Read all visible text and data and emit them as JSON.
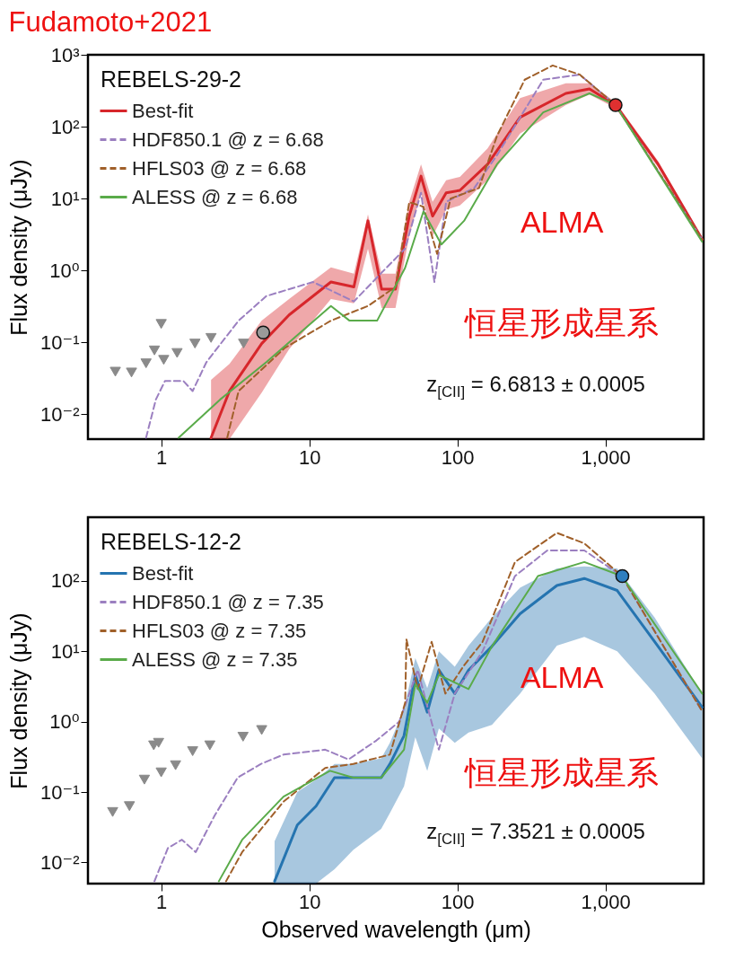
{
  "chart_data": [
    {
      "type": "line",
      "title": "Fudamoto+2021",
      "subtitle": "REBELS-29-2",
      "ylabel": "Flux density (μJy)",
      "log": "xy",
      "grid": false,
      "legend": "top left",
      "xlim": [
        0.32,
        4600
      ],
      "ylim": [
        0.0045,
        1000
      ],
      "xticks": [
        1,
        10,
        100,
        {
          "value": 1000,
          "label": "1,000"
        }
      ],
      "yticks": [
        {
          "value": 0.01,
          "label": "10⁻²"
        },
        {
          "value": 0.1,
          "label": "10⁻¹"
        },
        {
          "value": 1,
          "label": "10⁰"
        },
        {
          "value": 10,
          "label": "10¹"
        },
        {
          "value": 100,
          "label": "10²"
        },
        {
          "value": 1000,
          "label": "10³"
        }
      ],
      "annotations": [
        "ALMA",
        "恒星形成星系",
        "z$_{[CII]}$ = 6.6813 ± 0.0005"
      ],
      "series": [
        {
          "name": "Best-fit",
          "color": "#d7262b",
          "line_style": "solid",
          "x": [
            2.17,
            2.89,
            4.77,
            7.3,
            14,
            20,
            24.9,
            30.8,
            38.2,
            47.3,
            56.8,
            68,
            84,
            104,
            160,
            265,
            540,
            780,
            1170,
            2270,
            4500
          ],
          "values": [
            0.0047,
            0.021,
            0.096,
            0.24,
            0.69,
            0.59,
            4.9,
            0.55,
            0.55,
            5.7,
            20.5,
            5.7,
            12,
            13,
            30,
            135,
            290,
            335,
            200,
            30,
            2.7
          ],
          "lower": [
            0.0045,
            0.0045,
            0.02,
            0.08,
            0.4,
            0.35,
            2,
            0.3,
            0.3,
            3,
            12,
            3,
            7,
            8,
            18,
            80,
            200,
            280,
            180,
            27,
            2.5
          ],
          "upper": [
            0.03,
            0.05,
            0.2,
            0.4,
            1.1,
            0.9,
            6,
            0.9,
            0.9,
            9,
            30,
            9,
            18,
            20,
            50,
            250,
            400,
            400,
            220,
            33,
            2.9
          ]
        },
        {
          "name": "HDF850.1 @ z = 6.68",
          "color": "#9b7fc0",
          "line_style": "dashed",
          "x": [
            0.79,
            0.92,
            1.06,
            1.41,
            1.63,
            2.02,
            3.33,
            5.13,
            10.6,
            20,
            30.8,
            44.3,
            56.8,
            70,
            84,
            130,
            185,
            380,
            670,
            1170,
            4500
          ],
          "values": [
            0.0047,
            0.016,
            0.029,
            0.029,
            0.021,
            0.053,
            0.2,
            0.44,
            0.69,
            0.37,
            0.93,
            2,
            12,
            0.69,
            9,
            14,
            40,
            450,
            530,
            200,
            2.7
          ]
        },
        {
          "name": "HFLS03 @ z = 6.68",
          "color": "#a0602a",
          "line_style": "dashed",
          "x": [
            2.79,
            3.33,
            6.8,
            14,
            24.9,
            38.2,
            47.3,
            59,
            73,
            90,
            140,
            185,
            285,
            440,
            670,
            1170,
            4500
          ],
          "values": [
            0.0047,
            0.021,
            0.083,
            0.2,
            0.32,
            0.59,
            8.9,
            7.7,
            1.7,
            10,
            14,
            74,
            450,
            710,
            530,
            200,
            2.7
          ]
        },
        {
          "name": "ALESS @ z = 6.68",
          "color": "#5aab4a",
          "line_style": "solid",
          "x": [
            1.31,
            2.5,
            5.13,
            14,
            18.7,
            28.7,
            44.3,
            59,
            78,
            111,
            185,
            380,
            780,
            1170,
            4500
          ],
          "values": [
            0.0047,
            0.016,
            0.053,
            0.32,
            0.2,
            0.2,
            1.08,
            6.6,
            2.3,
            4.9,
            30,
            158,
            290,
            200,
            2.5
          ]
        },
        {
          "type": "scatter",
          "marker": "triangle",
          "color": "#8a8a8a",
          "x": [
            0.49,
            0.63,
            0.79,
            0.9,
            1,
            1.04,
            1.28,
            1.69,
            2.17,
            3.6
          ],
          "values": [
            0.039,
            0.038,
            0.051,
            0.077,
            0.18,
            0.057,
            0.071,
            0.096,
            0.115,
            0.096
          ]
        },
        {
          "type": "scatter",
          "marker": "circle",
          "color": "#9a9a9a",
          "x": [
            4.88
          ],
          "values": [
            0.137
          ]
        },
        {
          "type": "scatter",
          "marker": "circle",
          "color": "#e03030",
          "x": [
            1170
          ],
          "values": [
            200
          ]
        }
      ]
    },
    {
      "type": "line",
      "subtitle": "REBELS-12-2",
      "xlabel": "Observed wavelength (μm)",
      "ylabel": "Flux density (μJy)",
      "log": "xy",
      "grid": false,
      "legend": "top left",
      "xlim": [
        0.32,
        4600
      ],
      "ylim": [
        0.005,
        800
      ],
      "xticks": [
        1,
        10,
        100,
        {
          "value": 1000,
          "label": "1,000"
        }
      ],
      "yticks": [
        {
          "value": 0.01,
          "label": "10⁻²"
        },
        {
          "value": 0.1,
          "label": "10⁻¹"
        },
        {
          "value": 1,
          "label": "10⁰"
        },
        {
          "value": 10,
          "label": "10¹"
        },
        {
          "value": 100,
          "label": "10²"
        }
      ],
      "annotations": [
        "ALMA",
        "恒星形成星系",
        "z$_{[CII]}$ = 7.3521 ± 0.0005"
      ],
      "series": [
        {
          "name": "Best-fit",
          "color": "#2574b0",
          "line_style": "solid",
          "x": [
            5.83,
            8.3,
            11.1,
            14.8,
            19.8,
            30.6,
            35,
            43.6,
            52,
            62.6,
            75,
            96,
            119,
            171,
            265,
            470,
            720,
            1200,
            2150,
            4500
          ],
          "values": [
            0.0054,
            0.034,
            0.063,
            0.16,
            0.16,
            0.16,
            0.25,
            0.63,
            4.6,
            1.36,
            5.4,
            2.5,
            5.4,
            11.7,
            34,
            86,
            108,
            73,
            13.6,
            1.6
          ],
          "lower": [
            0.005,
            0.005,
            0.005,
            0.008,
            0.015,
            0.03,
            0.05,
            0.12,
            0.6,
            0.2,
            0.8,
            0.5,
            0.7,
            0.9,
            2.5,
            12,
            16,
            10,
            2.5,
            0.3
          ],
          "upper": [
            0.02,
            0.1,
            0.15,
            0.25,
            0.25,
            0.3,
            0.5,
            1.5,
            8,
            3,
            10,
            6,
            12,
            30,
            80,
            150,
            160,
            150,
            30,
            2.5
          ]
        },
        {
          "name": "HDF850.1 @ z = 7.35",
          "color": "#9b7fc0",
          "line_style": "dashed",
          "x": [
            0.9,
            1.11,
            1.38,
            1.71,
            2.29,
            3.28,
            4.7,
            6.7,
            12.8,
            18.4,
            28.4,
            40.5,
            54,
            75,
            96,
            148,
            245,
            405,
            720,
            1290,
            4500
          ],
          "values": [
            0.0054,
            0.016,
            0.021,
            0.014,
            0.046,
            0.16,
            0.25,
            0.34,
            0.4,
            0.29,
            0.54,
            1,
            5.4,
            0.4,
            2.5,
            10,
            117,
            270,
            270,
            117,
            1.4
          ]
        },
        {
          "name": "HFLS03 @ z = 7.35",
          "color": "#a0602a",
          "line_style": "dashed",
          "x": [
            2.74,
            3.52,
            6.7,
            12.8,
            19.8,
            35,
            44.4,
            45.3,
            54,
            67,
            83,
            111,
            148,
            245,
            470,
            720,
            1290,
            4500
          ],
          "values": [
            0.0054,
            0.014,
            0.073,
            0.22,
            0.25,
            0.34,
            1.85,
            14.7,
            2.9,
            13.6,
            2.5,
            6.3,
            13.6,
            185,
            480,
            340,
            117,
            1.4
          ]
        },
        {
          "name": "ALESS @ z = 7.35",
          "color": "#5aab4a",
          "line_style": "solid",
          "x": [
            2.45,
            3.52,
            6.7,
            13.8,
            19.8,
            30.6,
            43.6,
            52,
            62.6,
            75,
            119,
            171,
            350,
            720,
            1290,
            4500
          ],
          "values": [
            0.0054,
            0.021,
            0.086,
            0.2,
            0.16,
            0.16,
            0.4,
            3.4,
            1.85,
            4.6,
            2.9,
            11.7,
            117,
            185,
            117,
            2.5
          ]
        },
        {
          "type": "scatter",
          "marker": "triangle",
          "color": "#8a8a8a",
          "x": [
            0.47,
            0.61,
            0.77,
            0.89,
            0.96,
            1,
            1.25,
            1.63,
            2.13,
            3.57,
            4.77
          ],
          "values": [
            0.052,
            0.063,
            0.15,
            0.46,
            0.5,
            0.19,
            0.24,
            0.38,
            0.46,
            0.61,
            0.76
          ]
        },
        {
          "type": "scatter",
          "marker": "circle",
          "color": "#2f7fc0",
          "x": [
            1300
          ],
          "values": [
            117
          ]
        }
      ]
    }
  ]
}
